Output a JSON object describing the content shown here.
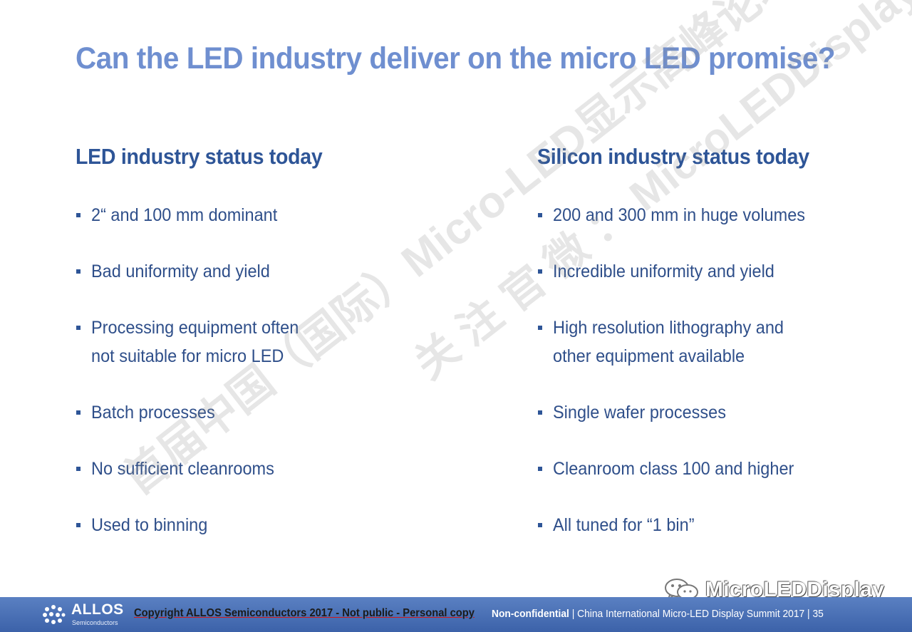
{
  "slide": {
    "title": "Can the LED industry deliver on the micro LED promise?",
    "left_column": {
      "heading": "LED industry status today",
      "bullets": [
        "2“ and 100 mm dominant",
        "Bad uniformity and yield",
        "Processing equipment often\nnot suitable for micro LED",
        "Batch processes",
        "No sufficient cleanrooms",
        "Used to binning"
      ]
    },
    "right_column": {
      "heading": "Silicon industry status today",
      "bullets": [
        "200 and 300 mm in huge volumes",
        "Incredible uniformity and yield",
        "High resolution lithography and\nother equipment available",
        "Single wafer processes",
        "Cleanroom class 100 and higher",
        "All tuned for “1 bin”"
      ]
    }
  },
  "watermarks": {
    "primary": "首届中国（国际）Micro-LED显示高峰论坛",
    "secondary": "关 注 官 微 ： MicroLEDDisplay"
  },
  "footer": {
    "brand": "ALLOS",
    "brand_sub": "Semiconductors",
    "copyright": "Copyright ALLOS Semiconductors 2017 - Not public - Personal copy",
    "confidentiality": "Non-confidential",
    "event": " | China International Micro-LED Display Summit  2017 | 35"
  },
  "account": {
    "name": "MicroLEDDisplay",
    "icon": "wechat-icon"
  },
  "colors": {
    "title": "#6f8fd0",
    "heading": "#2e5597",
    "body_text": "#2f4f8a",
    "footer_bg": "#4a6fb5"
  }
}
